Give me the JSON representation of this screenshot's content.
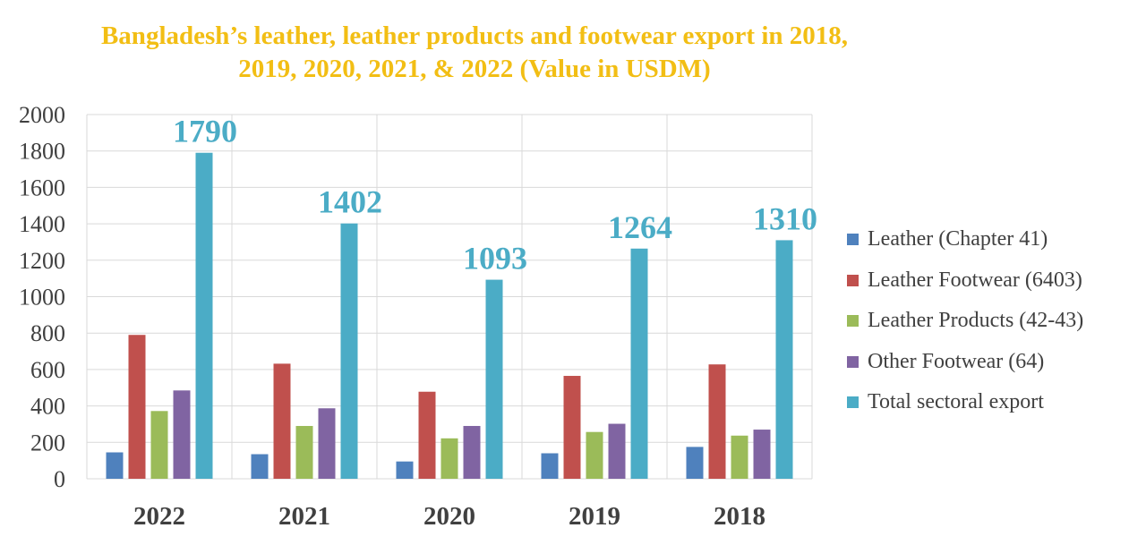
{
  "chart_data": {
    "type": "bar",
    "title_lines": [
      "Bangladesh’s leather, leather products and footwear export in 2018,",
      "2019, 2020, 2021, & 2022 (Value in USDM)"
    ],
    "categories": [
      "2022",
      "2021",
      "2020",
      "2019",
      "2018"
    ],
    "series": [
      {
        "name": "Leather (Chapter 41)",
        "color": "#4F81BD",
        "values": [
          145,
          135,
          95,
          140,
          175
        ]
      },
      {
        "name": "Leather Footwear (6403)",
        "color": "#C0504D",
        "values": [
          790,
          632,
          478,
          565,
          628
        ]
      },
      {
        "name": "Leather Products (42-43)",
        "color": "#9BBB59",
        "values": [
          372,
          290,
          222,
          257,
          237
        ]
      },
      {
        "name": "Other Footwear (64)",
        "color": "#8064A2",
        "values": [
          485,
          387,
          290,
          302,
          270
        ]
      },
      {
        "name": "Total sectoral export",
        "color": "#4BACC6",
        "values": [
          1790,
          1402,
          1093,
          1264,
          1310
        ]
      }
    ],
    "data_labels": {
      "series": "Total sectoral export",
      "values": [
        "1790",
        "1402",
        "1093",
        "1264",
        "1310"
      ],
      "color": "#4BACC6"
    },
    "ylim": [
      0,
      2000
    ],
    "yticks": [
      0,
      200,
      400,
      600,
      800,
      1000,
      1200,
      1400,
      1600,
      1800,
      2000
    ],
    "xlabel": "",
    "ylabel": "",
    "grid": true,
    "legend_position": "right"
  }
}
